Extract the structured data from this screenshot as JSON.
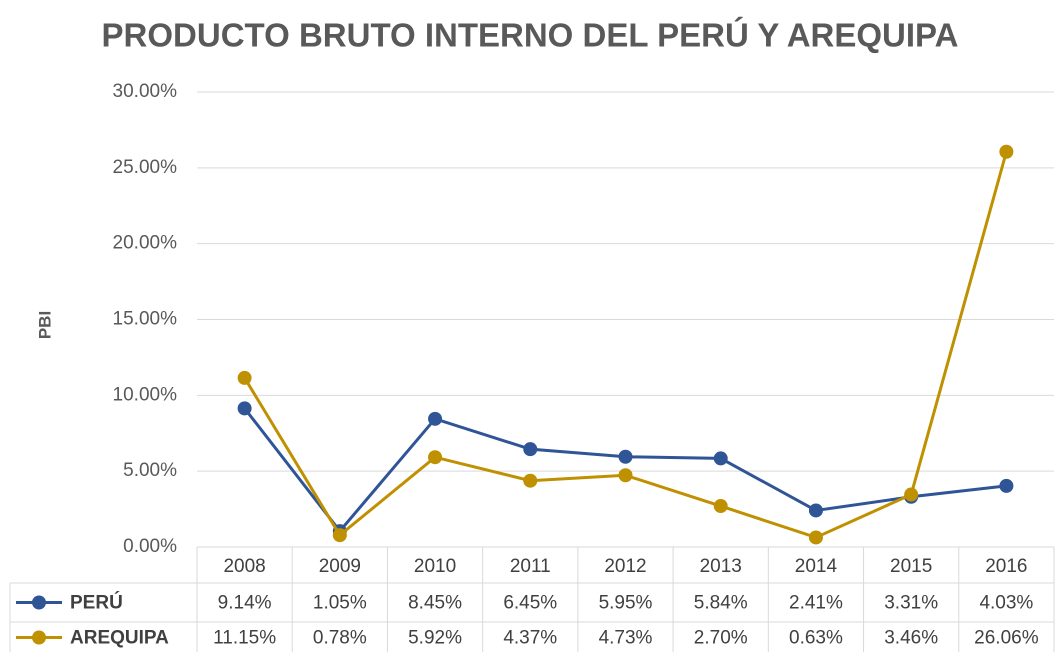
{
  "chart_data": {
    "type": "line",
    "title": "PRODUCTO BRUTO INTERNO DEL PERÚ Y AREQUIPA",
    "ylabel": "PBI",
    "categories": [
      "2008",
      "2009",
      "2010",
      "2011",
      "2012",
      "2013",
      "2014",
      "2015",
      "2016"
    ],
    "series": [
      {
        "name": "PERÚ",
        "color": "#2f5597",
        "values": [
          9.14,
          1.05,
          8.45,
          6.45,
          5.95,
          5.84,
          2.41,
          3.31,
          4.03
        ],
        "value_labels": [
          "9.14%",
          "1.05%",
          "8.45%",
          "6.45%",
          "5.95%",
          "5.84%",
          "2.41%",
          "3.31%",
          "4.03%"
        ]
      },
      {
        "name": "AREQUIPA",
        "color": "#bf9000",
        "values": [
          11.15,
          0.78,
          5.92,
          4.37,
          4.73,
          2.7,
          0.63,
          3.46,
          26.06
        ],
        "value_labels": [
          "11.15%",
          "0.78%",
          "5.92%",
          "4.37%",
          "4.73%",
          "2.70%",
          "0.63%",
          "3.46%",
          "26.06%"
        ]
      }
    ],
    "ylim": [
      0,
      30
    ],
    "yticks": [
      {
        "value": 0,
        "label": "0.00%"
      },
      {
        "value": 5,
        "label": "5.00%"
      },
      {
        "value": 10,
        "label": "10.00%"
      },
      {
        "value": 15,
        "label": "15.00%"
      },
      {
        "value": 20,
        "label": "20.00%"
      },
      {
        "value": 25,
        "label": "25.00%"
      },
      {
        "value": 30,
        "label": "30.00%"
      }
    ],
    "grid": true
  }
}
